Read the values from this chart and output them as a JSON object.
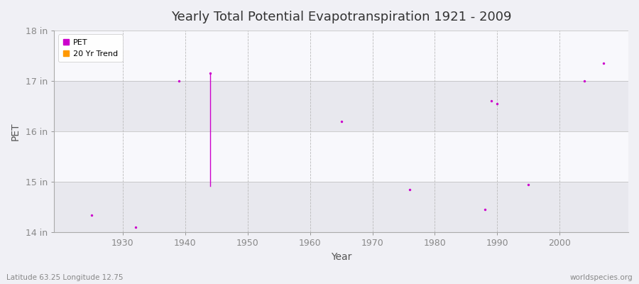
{
  "title": "Yearly Total Potential Evapotranspiration 1921 - 2009",
  "xlabel": "Year",
  "ylabel": "PET",
  "bg_color": "#f0f0f5",
  "plot_bg_color": "#f0f0f5",
  "scatter_color": "#cc00cc",
  "trend_color": "#ff9900",
  "pet_points": [
    [
      1925,
      14.35
    ],
    [
      1932,
      14.1
    ],
    [
      1939,
      17.0
    ],
    [
      1944,
      17.15
    ],
    [
      1965,
      16.2
    ],
    [
      1976,
      14.85
    ],
    [
      1988,
      14.45
    ],
    [
      1989,
      16.6
    ],
    [
      1990,
      16.55
    ],
    [
      1995,
      14.95
    ],
    [
      2004,
      17.0
    ],
    [
      2007,
      17.35
    ]
  ],
  "trend_line_x": [
    1944,
    1944
  ],
  "trend_line_y": [
    17.15,
    14.92
  ],
  "ylim": [
    14.0,
    18.0
  ],
  "yticks": [
    14,
    15,
    16,
    17,
    18
  ],
  "ytick_labels": [
    "14 in",
    "15 in",
    "16 in",
    "17 in",
    "18 in"
  ],
  "xlim": [
    1919,
    2011
  ],
  "xticks": [
    1930,
    1940,
    1950,
    1960,
    1970,
    1980,
    1990,
    2000
  ],
  "footer_left": "Latitude 63.25 Longitude 12.75",
  "footer_right": "worldspecies.org",
  "grid_color": "#bbbbbb",
  "band_colors": [
    "#e8e8ee",
    "#f8f8fc"
  ],
  "spine_color": "#aaaaaa"
}
